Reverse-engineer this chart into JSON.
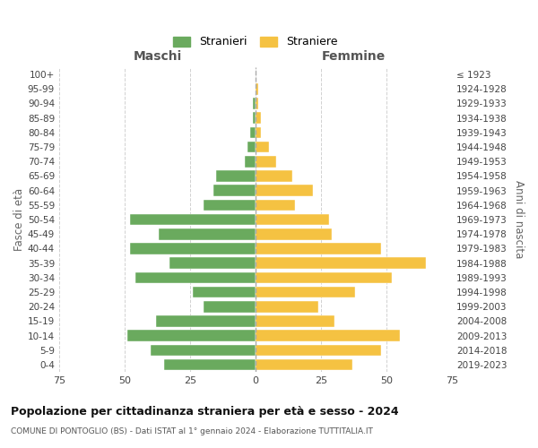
{
  "age_groups": [
    "0-4",
    "5-9",
    "10-14",
    "15-19",
    "20-24",
    "25-29",
    "30-34",
    "35-39",
    "40-44",
    "45-49",
    "50-54",
    "55-59",
    "60-64",
    "65-69",
    "70-74",
    "75-79",
    "80-84",
    "85-89",
    "90-94",
    "95-99",
    "100+"
  ],
  "birth_years": [
    "2019-2023",
    "2014-2018",
    "2009-2013",
    "2004-2008",
    "1999-2003",
    "1994-1998",
    "1989-1993",
    "1984-1988",
    "1979-1983",
    "1974-1978",
    "1969-1973",
    "1964-1968",
    "1959-1963",
    "1954-1958",
    "1949-1953",
    "1944-1948",
    "1939-1943",
    "1934-1938",
    "1929-1933",
    "1924-1928",
    "≤ 1923"
  ],
  "maschi": [
    35,
    40,
    49,
    38,
    20,
    24,
    46,
    33,
    48,
    37,
    48,
    20,
    16,
    15,
    4,
    3,
    2,
    1,
    1,
    0,
    0
  ],
  "femmine": [
    37,
    48,
    55,
    30,
    24,
    38,
    52,
    65,
    48,
    29,
    28,
    15,
    22,
    14,
    8,
    5,
    2,
    2,
    1,
    1,
    0
  ],
  "male_color": "#6aaa5e",
  "female_color": "#f5c242",
  "background_color": "#ffffff",
  "grid_color": "#cccccc",
  "title": "Popolazione per cittadinanza straniera per età e sesso - 2024",
  "subtitle": "COMUNE DI PONTOGLIO (BS) - Dati ISTAT al 1° gennaio 2024 - Elaborazione TUTTITALIA.IT",
  "xlabel_left": "Maschi",
  "xlabel_right": "Femmine",
  "ylabel_left": "Fasce di età",
  "ylabel_right": "Anni di nascita",
  "legend_male": "Stranieri",
  "legend_female": "Straniere",
  "xlim": 75,
  "bar_height": 0.78
}
